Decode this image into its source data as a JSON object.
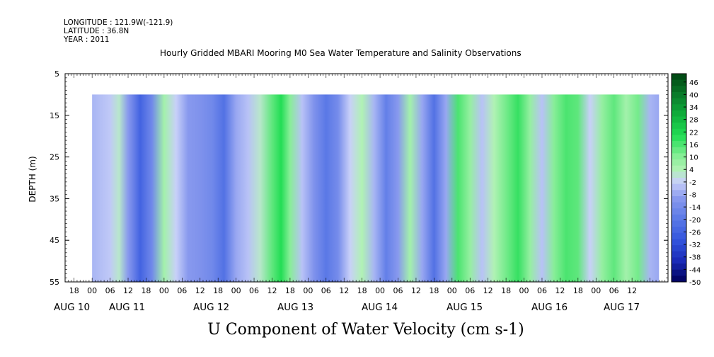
{
  "header": {
    "longitude": "LONGITUDE : 121.9W(-121.9)",
    "latitude": "LATITUDE : 36.8N",
    "year": "YEAR : 2011"
  },
  "chart_data": {
    "type": "heatmap",
    "title": "Hourly Gridded MBARI Mooring M0 Sea Water Temperature and Salinity Observations",
    "bottom_title": "U Component of Water Velocity (cm s-1)",
    "ylabel": "DEPTH (m)",
    "xlabel": "",
    "ylim": [
      55,
      5
    ],
    "y_ticks": [
      "5",
      "15",
      "25",
      "35",
      "45",
      "55"
    ],
    "x_hour_ticks": [
      "18",
      "00",
      "06",
      "12",
      "18",
      "00",
      "06",
      "12",
      "18",
      "00",
      "06",
      "12",
      "18",
      "00",
      "06",
      "12",
      "18",
      "00",
      "06",
      "12",
      "18",
      "00",
      "06",
      "12",
      "18",
      "00",
      "06",
      "12",
      "18",
      "00",
      "06",
      "12"
    ],
    "x_day_labels": [
      "AUG 10",
      "AUG 11",
      "AUG 12",
      "AUG 13",
      "AUG 14",
      "AUG 15",
      "AUG 16",
      "AUG 17"
    ],
    "x_range_hours": [
      -9,
      192
    ],
    "data_depth_range": [
      10,
      55
    ],
    "data_time_range_hours": [
      0,
      189
    ],
    "colorbar_labels": [
      "46",
      "40",
      "34",
      "28",
      "22",
      "16",
      "10",
      "4",
      "-2",
      "-8",
      "-14",
      "-20",
      "-26",
      "-32",
      "-38",
      "-44",
      "-50"
    ],
    "colorbar_range": [
      -50,
      50
    ],
    "colors": {
      "strong_negative": "#000066",
      "moderate_negative": "#3355dd",
      "weak_negative": "#8899ee",
      "near_zero": "#c8d0f8",
      "weak_positive": "#99f0a0",
      "moderate_positive": "#22dd55",
      "strong_positive": "#004411"
    },
    "bands": [
      {
        "t": 0,
        "v": -6
      },
      {
        "t": 6,
        "v": -3
      },
      {
        "t": 9,
        "v": 2
      },
      {
        "t": 12,
        "v": -10
      },
      {
        "t": 16,
        "v": -26
      },
      {
        "t": 20,
        "v": -15
      },
      {
        "t": 24,
        "v": 6
      },
      {
        "t": 28,
        "v": -2
      },
      {
        "t": 32,
        "v": -10
      },
      {
        "t": 36,
        "v": -12
      },
      {
        "t": 40,
        "v": -15
      },
      {
        "t": 44,
        "v": -22
      },
      {
        "t": 48,
        "v": -8
      },
      {
        "t": 52,
        "v": -4
      },
      {
        "t": 56,
        "v": 2
      },
      {
        "t": 60,
        "v": 14
      },
      {
        "t": 63,
        "v": 20
      },
      {
        "t": 66,
        "v": 10
      },
      {
        "t": 70,
        "v": -4
      },
      {
        "t": 74,
        "v": -12
      },
      {
        "t": 78,
        "v": -20
      },
      {
        "t": 82,
        "v": -14
      },
      {
        "t": 86,
        "v": -2
      },
      {
        "t": 90,
        "v": 4
      },
      {
        "t": 94,
        "v": -6
      },
      {
        "t": 98,
        "v": -18
      },
      {
        "t": 102,
        "v": -10
      },
      {
        "t": 106,
        "v": 6
      },
      {
        "t": 110,
        "v": -8
      },
      {
        "t": 114,
        "v": -22
      },
      {
        "t": 118,
        "v": -8
      },
      {
        "t": 122,
        "v": 16
      },
      {
        "t": 126,
        "v": 8
      },
      {
        "t": 130,
        "v": -4
      },
      {
        "t": 134,
        "v": 4
      },
      {
        "t": 138,
        "v": 12
      },
      {
        "t": 142,
        "v": 18
      },
      {
        "t": 146,
        "v": 8
      },
      {
        "t": 150,
        "v": -4
      },
      {
        "t": 154,
        "v": 10
      },
      {
        "t": 158,
        "v": 16
      },
      {
        "t": 162,
        "v": 14
      },
      {
        "t": 166,
        "v": -2
      },
      {
        "t": 170,
        "v": 8
      },
      {
        "t": 174,
        "v": 14
      },
      {
        "t": 178,
        "v": 6
      },
      {
        "t": 182,
        "v": 12
      },
      {
        "t": 186,
        "v": -6
      },
      {
        "t": 189,
        "v": -8
      }
    ]
  }
}
